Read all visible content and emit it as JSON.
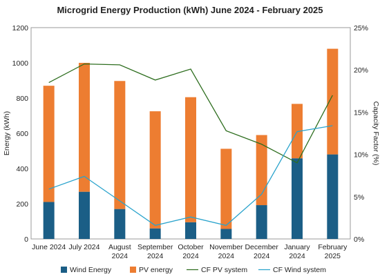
{
  "chart_data": {
    "type": "bar",
    "title": "Microgrid Energy Production (kWh) June 2024 - February 2025",
    "ylabel_left": "Energy (kWh)",
    "ylabel_right": "Capacity Factor (%)",
    "ylim_left": [
      0,
      1200
    ],
    "ylim_right": [
      0,
      25
    ],
    "yticks_left": [
      "0",
      "200",
      "400",
      "600",
      "800",
      "1000",
      "1200"
    ],
    "yticks_right": [
      "0%",
      "5%",
      "10%",
      "15%",
      "20%",
      "25%"
    ],
    "categories": [
      [
        "June 2024"
      ],
      [
        "July 2024"
      ],
      [
        "August",
        "2024"
      ],
      [
        "September",
        "2024"
      ],
      [
        "October",
        "2024"
      ],
      [
        "November",
        "2024"
      ],
      [
        "December",
        "2024"
      ],
      [
        "January",
        "2024"
      ],
      [
        "February",
        "2025"
      ]
    ],
    "series": [
      {
        "name": "Wind Energy",
        "kind": "stacked-bar",
        "axis": "left",
        "color": "#1b5e86",
        "values": [
          210,
          268,
          170,
          60,
          95,
          57,
          192,
          458,
          480
        ]
      },
      {
        "name": "PV energy",
        "kind": "stacked-bar",
        "axis": "left",
        "color": "#ed7d31",
        "values": [
          660,
          732,
          727,
          665,
          710,
          455,
          398,
          309,
          600
        ]
      },
      {
        "name": "CF PV system",
        "kind": "line",
        "axis": "right",
        "color": "#2e6e1f",
        "values": [
          18.5,
          20.7,
          20.6,
          18.8,
          20.1,
          12.8,
          11.2,
          9.0,
          17.0
        ]
      },
      {
        "name": "CF Wind system",
        "kind": "line",
        "axis": "right",
        "color": "#29a3cc",
        "values": [
          5.9,
          7.4,
          4.5,
          1.6,
          2.6,
          1.6,
          5.3,
          12.7,
          13.4
        ]
      }
    ],
    "grid": false,
    "legend": "bottom"
  }
}
